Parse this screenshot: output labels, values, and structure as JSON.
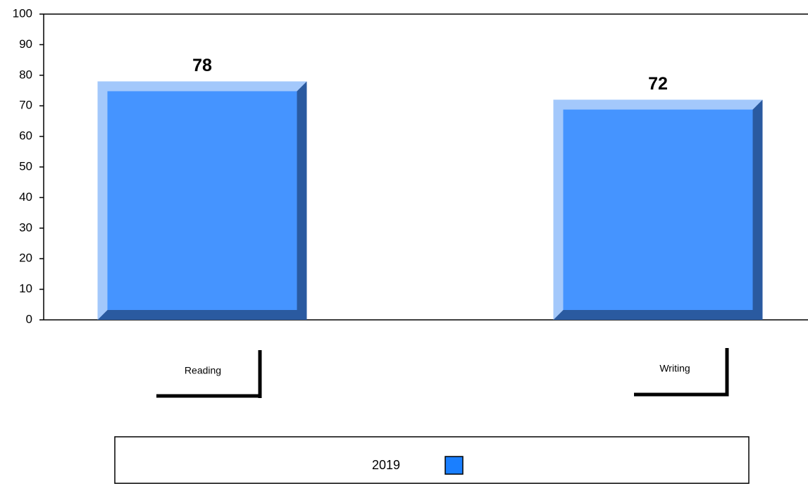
{
  "chart_data": {
    "type": "bar",
    "categories": [
      "Reading",
      "Writing"
    ],
    "series": [
      {
        "name": "2019",
        "color": "#4594ff",
        "values": [
          78,
          72
        ]
      }
    ],
    "ylim": [
      0,
      100
    ],
    "yticks": [
      0,
      10,
      20,
      30,
      40,
      50,
      60,
      70,
      80,
      90,
      100
    ],
    "legend": "bottom"
  }
}
